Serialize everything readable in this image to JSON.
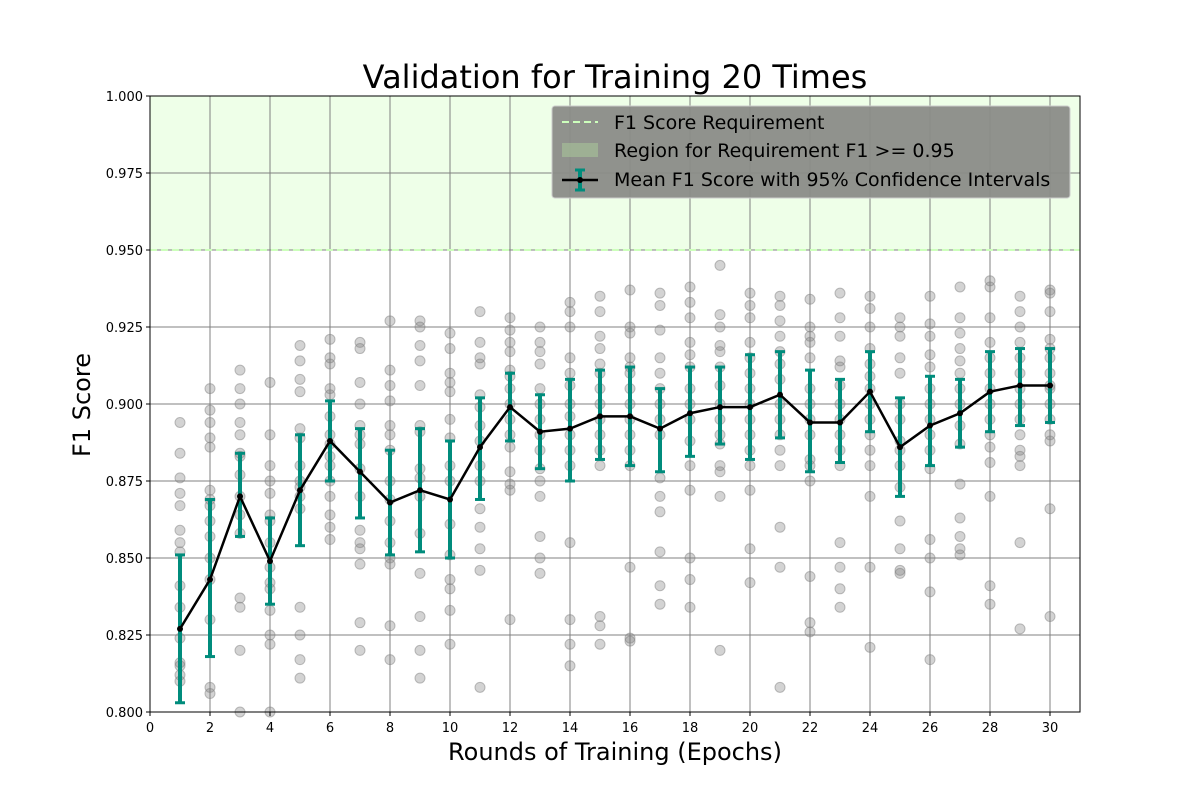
{
  "chart_data": {
    "type": "line",
    "title": "Validation for Training 20 Times",
    "xlabel": "Rounds of Training (Epochs)",
    "ylabel": "F1 Score",
    "xlim": [
      0,
      31
    ],
    "ylim": [
      0.8,
      1.0
    ],
    "xticks": [
      "0",
      "2",
      "4",
      "6",
      "8",
      "10",
      "12",
      "14",
      "16",
      "18",
      "20",
      "22",
      "24",
      "26",
      "28",
      "30"
    ],
    "yticks": [
      "0.800",
      "0.825",
      "0.850",
      "0.875",
      "0.900",
      "0.925",
      "0.950",
      "0.975",
      "1.000"
    ],
    "grid": true,
    "legend_position": "top-right",
    "requirement_value": 0.95,
    "colors": {
      "requirement_line": "#ccffbb",
      "requirement_region": "#eeffe8",
      "error_bar": "#008c7c",
      "mean_line": "#000000",
      "scatter": "#808080",
      "grid": "#808080",
      "legend_bg": "#8a8c88"
    },
    "legend": {
      "requirement_label": "F1 Score Requirement",
      "region_label": "Region for Requirement F1 >= 0.95",
      "mean_label": "Mean F1 Score with 95% Confidence Intervals"
    },
    "series": [
      {
        "name": "Mean F1 Score with 95% Confidence Intervals",
        "x": [
          1,
          2,
          3,
          4,
          5,
          6,
          7,
          8,
          9,
          10,
          11,
          12,
          13,
          14,
          15,
          16,
          17,
          18,
          19,
          20,
          21,
          22,
          23,
          24,
          25,
          26,
          27,
          28,
          29,
          30
        ],
        "mean": [
          0.827,
          0.843,
          0.87,
          0.849,
          0.872,
          0.888,
          0.878,
          0.868,
          0.872,
          0.869,
          0.886,
          0.899,
          0.891,
          0.892,
          0.896,
          0.896,
          0.892,
          0.897,
          0.899,
          0.899,
          0.903,
          0.894,
          0.894,
          0.904,
          0.886,
          0.893,
          0.897,
          0.904,
          0.906,
          0.906
        ],
        "ci_low": [
          0.803,
          0.818,
          0.857,
          0.835,
          0.854,
          0.875,
          0.863,
          0.851,
          0.852,
          0.85,
          0.869,
          0.888,
          0.879,
          0.875,
          0.882,
          0.88,
          0.878,
          0.883,
          0.887,
          0.882,
          0.889,
          0.878,
          0.881,
          0.891,
          0.87,
          0.88,
          0.886,
          0.891,
          0.893,
          0.894
        ],
        "ci_high": [
          0.851,
          0.869,
          0.884,
          0.863,
          0.89,
          0.901,
          0.892,
          0.885,
          0.892,
          0.888,
          0.902,
          0.91,
          0.903,
          0.908,
          0.911,
          0.912,
          0.905,
          0.912,
          0.912,
          0.916,
          0.917,
          0.911,
          0.908,
          0.917,
          0.902,
          0.909,
          0.908,
          0.917,
          0.918,
          0.918
        ]
      },
      {
        "name": "runs",
        "type": "scatter",
        "points": [
          [
            [
              0.894,
              0.884,
              0.876,
              0.871,
              0.867,
              0.859,
              0.855,
              0.852,
              0.841,
              0.834,
              0.824,
              0.816,
              0.815,
              0.812,
              0.81
            ]
          ],
          [
            [
              0.905,
              0.898,
              0.894,
              0.889,
              0.886,
              0.872,
              0.869,
              0.867,
              0.862,
              0.857,
              0.85,
              0.843,
              0.83,
              0.808,
              0.806
            ]
          ],
          [
            [
              0.911,
              0.905,
              0.9,
              0.894,
              0.89,
              0.884,
              0.883,
              0.877,
              0.87,
              0.864,
              0.858,
              0.837,
              0.834,
              0.82,
              0.8
            ]
          ],
          [
            [
              0.907,
              0.89,
              0.88,
              0.875,
              0.871,
              0.864,
              0.862,
              0.855,
              0.847,
              0.842,
              0.84,
              0.833,
              0.825,
              0.822,
              0.8
            ]
          ],
          [
            [
              0.919,
              0.914,
              0.908,
              0.904,
              0.892,
              0.889,
              0.88,
              0.875,
              0.873,
              0.87,
              0.866,
              0.834,
              0.825,
              0.817,
              0.811
            ]
          ],
          [
            [
              0.921,
              0.915,
              0.913,
              0.905,
              0.903,
              0.896,
              0.89,
              0.887,
              0.883,
              0.88,
              0.875,
              0.87,
              0.864,
              0.86,
              0.856
            ]
          ],
          [
            [
              0.92,
              0.918,
              0.907,
              0.9,
              0.893,
              0.89,
              0.887,
              0.879,
              0.87,
              0.859,
              0.855,
              0.853,
              0.848,
              0.829,
              0.82
            ]
          ],
          [
            [
              0.927,
              0.911,
              0.906,
              0.901,
              0.893,
              0.89,
              0.885,
              0.875,
              0.869,
              0.862,
              0.855,
              0.85,
              0.848,
              0.828,
              0.817
            ]
          ],
          [
            [
              0.927,
              0.925,
              0.919,
              0.914,
              0.906,
              0.893,
              0.891,
              0.879,
              0.876,
              0.87,
              0.858,
              0.845,
              0.831,
              0.82,
              0.811
            ]
          ],
          [
            [
              0.923,
              0.918,
              0.91,
              0.907,
              0.904,
              0.895,
              0.889,
              0.88,
              0.875,
              0.861,
              0.851,
              0.843,
              0.84,
              0.833,
              0.822
            ]
          ],
          [
            [
              0.93,
              0.92,
              0.915,
              0.913,
              0.903,
              0.899,
              0.893,
              0.888,
              0.88,
              0.875,
              0.866,
              0.86,
              0.853,
              0.846,
              0.808
            ]
          ],
          [
            [
              0.928,
              0.924,
              0.92,
              0.917,
              0.911,
              0.909,
              0.905,
              0.9,
              0.895,
              0.89,
              0.886,
              0.878,
              0.874,
              0.872,
              0.83
            ]
          ],
          [
            [
              0.925,
              0.92,
              0.917,
              0.913,
              0.905,
              0.9,
              0.895,
              0.89,
              0.885,
              0.879,
              0.875,
              0.87,
              0.857,
              0.85,
              0.845
            ]
          ],
          [
            [
              0.933,
              0.93,
              0.925,
              0.915,
              0.91,
              0.906,
              0.9,
              0.896,
              0.89,
              0.885,
              0.88,
              0.855,
              0.83,
              0.822,
              0.815
            ]
          ],
          [
            [
              0.935,
              0.93,
              0.922,
              0.918,
              0.913,
              0.91,
              0.905,
              0.9,
              0.895,
              0.89,
              0.885,
              0.88,
              0.831,
              0.828,
              0.822
            ]
          ],
          [
            [
              0.937,
              0.925,
              0.923,
              0.915,
              0.912,
              0.91,
              0.905,
              0.9,
              0.895,
              0.89,
              0.885,
              0.88,
              0.847,
              0.824,
              0.823
            ]
          ],
          [
            [
              0.936,
              0.932,
              0.924,
              0.915,
              0.91,
              0.905,
              0.9,
              0.895,
              0.89,
              0.876,
              0.87,
              0.865,
              0.852,
              0.841,
              0.835
            ]
          ],
          [
            [
              0.938,
              0.933,
              0.928,
              0.92,
              0.916,
              0.912,
              0.905,
              0.9,
              0.895,
              0.888,
              0.88,
              0.872,
              0.85,
              0.843,
              0.834
            ]
          ],
          [
            [
              0.945,
              0.929,
              0.925,
              0.919,
              0.917,
              0.912,
              0.906,
              0.9,
              0.895,
              0.89,
              0.887,
              0.88,
              0.878,
              0.87,
              0.82
            ]
          ],
          [
            [
              0.936,
              0.932,
              0.928,
              0.92,
              0.915,
              0.91,
              0.905,
              0.9,
              0.895,
              0.89,
              0.885,
              0.88,
              0.872,
              0.853,
              0.842
            ]
          ],
          [
            [
              0.935,
              0.932,
              0.927,
              0.922,
              0.917,
              0.913,
              0.908,
              0.9,
              0.895,
              0.89,
              0.885,
              0.88,
              0.86,
              0.847,
              0.808
            ]
          ],
          [
            [
              0.934,
              0.925,
              0.922,
              0.92,
              0.915,
              0.905,
              0.9,
              0.895,
              0.89,
              0.882,
              0.88,
              0.875,
              0.844,
              0.829,
              0.826
            ]
          ],
          [
            [
              0.936,
              0.928,
              0.922,
              0.914,
              0.912,
              0.906,
              0.9,
              0.895,
              0.89,
              0.885,
              0.88,
              0.855,
              0.847,
              0.84,
              0.834
            ]
          ],
          [
            [
              0.935,
              0.931,
              0.925,
              0.918,
              0.913,
              0.909,
              0.905,
              0.9,
              0.895,
              0.89,
              0.885,
              0.88,
              0.87,
              0.847,
              0.821
            ]
          ],
          [
            [
              0.928,
              0.925,
              0.922,
              0.915,
              0.91,
              0.9,
              0.895,
              0.888,
              0.885,
              0.88,
              0.873,
              0.862,
              0.853,
              0.846,
              0.845
            ]
          ],
          [
            [
              0.935,
              0.926,
              0.922,
              0.916,
              0.912,
              0.905,
              0.9,
              0.895,
              0.89,
              0.885,
              0.879,
              0.856,
              0.85,
              0.839,
              0.817
            ]
          ],
          [
            [
              0.938,
              0.928,
              0.923,
              0.918,
              0.914,
              0.91,
              0.905,
              0.9,
              0.893,
              0.887,
              0.874,
              0.863,
              0.857,
              0.853,
              0.851
            ]
          ],
          [
            [
              0.94,
              0.938,
              0.928,
              0.92,
              0.915,
              0.91,
              0.905,
              0.9,
              0.895,
              0.89,
              0.886,
              0.881,
              0.87,
              0.841,
              0.835
            ]
          ],
          [
            [
              0.935,
              0.93,
              0.925,
              0.92,
              0.915,
              0.91,
              0.905,
              0.9,
              0.895,
              0.89,
              0.885,
              0.88,
              0.883,
              0.855,
              0.827
            ]
          ],
          [
            [
              0.937,
              0.936,
              0.93,
              0.921,
              0.918,
              0.915,
              0.91,
              0.905,
              0.9,
              0.895,
              0.89,
              0.888,
              0.866,
              0.831,
              0.906
            ]
          ]
        ]
      }
    ]
  }
}
